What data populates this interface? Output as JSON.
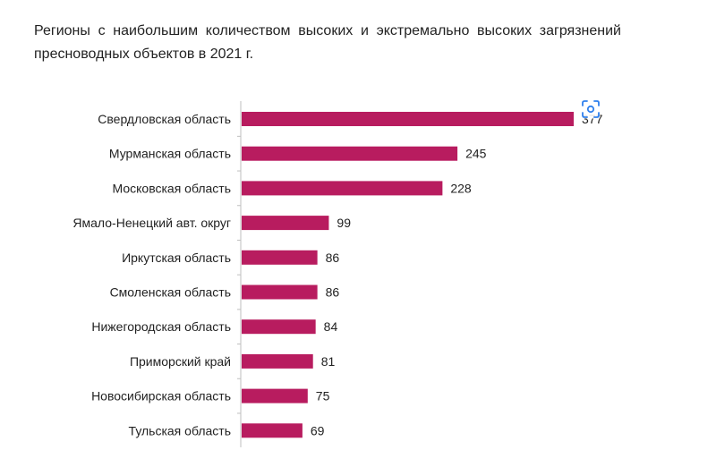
{
  "chart_data": {
    "type": "bar",
    "orientation": "horizontal",
    "title": "Регионы с наибольшим количеством высоких и экстремально высоких загрязнений пресноводных объектов в 2021 г.",
    "categories": [
      "Свердловская область",
      "Мурманская область",
      "Московская область",
      "Ямало-Ненецкий авт. округ",
      "Иркутская область",
      "Смоленская область",
      "Нижегородская область",
      "Приморский край",
      "Новосибирская область",
      "Тульская область"
    ],
    "values": [
      377,
      245,
      228,
      99,
      86,
      86,
      84,
      81,
      75,
      69
    ],
    "xlim": [
      0,
      377
    ],
    "data_labels": true,
    "grid": false,
    "bar_color": "#b81c5f"
  },
  "overlay": {
    "icon": "scan-icon",
    "color": "#2f80ed"
  }
}
